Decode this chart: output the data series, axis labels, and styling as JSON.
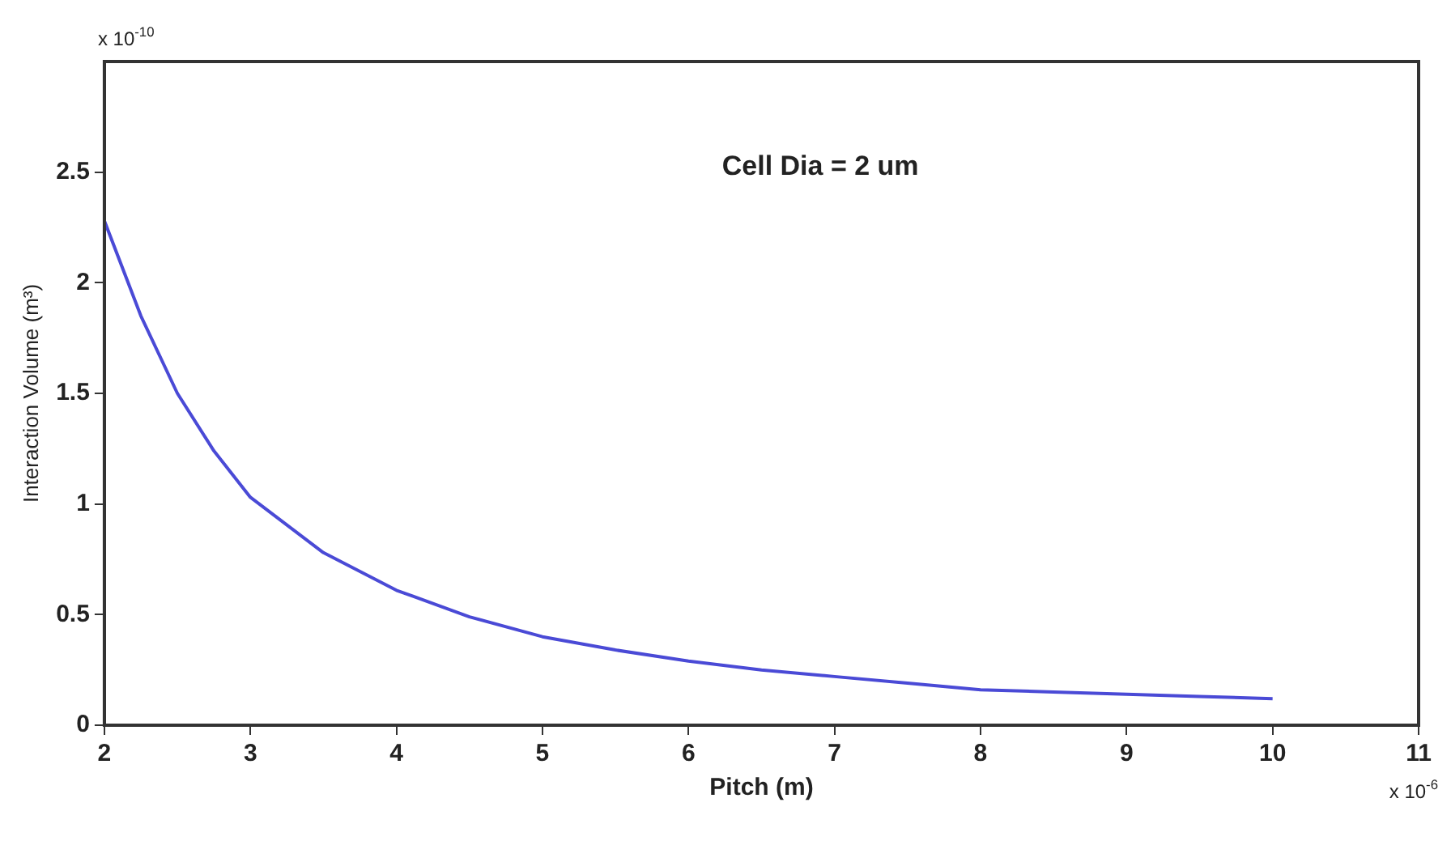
{
  "chart_data": {
    "type": "line",
    "xlabel": "Pitch (m)",
    "ylabel": "Interaction Volume (m³)",
    "annotations": [
      "x 10$^{-10}$",
      "x 10$^{-6}$",
      "Cell Dia = 2 um"
    ],
    "x": [
      2,
      2.25,
      2.5,
      2.75,
      3,
      3.5,
      4,
      4.5,
      5,
      5.5,
      6,
      6.5,
      7,
      7.5,
      8,
      8.5,
      9,
      9.5,
      10
    ],
    "series": [
      {
        "color": "#4a4ad6",
        "values": [
          2.28,
          1.85,
          1.5,
          1.24,
          1.03,
          0.78,
          0.61,
          0.49,
          0.4,
          0.34,
          0.29,
          0.25,
          0.22,
          0.19,
          0.16,
          0.15,
          0.14,
          0.13,
          0.12
        ]
      }
    ],
    "xlim": [
      2,
      11
    ],
    "xticks": [
      2,
      3,
      4,
      5,
      6,
      7,
      8,
      9,
      10,
      11
    ],
    "ylim": [
      0,
      3
    ],
    "yticks": [
      0,
      0.5,
      1,
      1.5,
      2,
      2.5
    ],
    "grid": false,
    "legend": false,
    "marker": "none",
    "line_style": "solid"
  }
}
